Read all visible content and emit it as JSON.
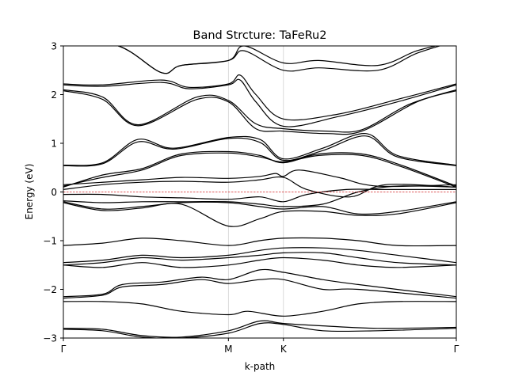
{
  "chart_data": {
    "type": "line",
    "title": "Band Strcture: TaFeRu2",
    "xlabel": "k-path",
    "ylabel": "Energy (eV)",
    "ylim": [
      -3,
      3
    ],
    "xlim": [
      0,
      1
    ],
    "yticks": [
      {
        "value": -3,
        "label": "−3"
      },
      {
        "value": -2,
        "label": "−2"
      },
      {
        "value": -1,
        "label": "−1"
      },
      {
        "value": 0,
        "label": "0"
      },
      {
        "value": 1,
        "label": "1"
      },
      {
        "value": 2,
        "label": "2"
      },
      {
        "value": 3,
        "label": "3"
      }
    ],
    "kpoints": [
      {
        "label": "Γ",
        "x": 0.0
      },
      {
        "label": "M",
        "x": 0.42
      },
      {
        "label": "K",
        "x": 0.56
      },
      {
        "label": "Γ",
        "x": 1.0
      }
    ],
    "fermi_level": 0,
    "grid": "vertical lines at high-symmetry points",
    "line_color": "#000000",
    "fermi_color": "#d62728",
    "series": [
      {
        "values": [
          [
            0.0,
            3.1
          ],
          [
            0.14,
            3.0
          ],
          [
            0.25,
            2.45
          ],
          [
            0.3,
            2.6
          ],
          [
            0.42,
            2.7
          ],
          [
            0.46,
            3.0
          ],
          [
            0.56,
            2.65
          ],
          [
            0.65,
            2.7
          ],
          [
            0.8,
            2.6
          ],
          [
            0.9,
            2.9
          ],
          [
            1.0,
            3.1
          ]
        ]
      },
      {
        "values": [
          [
            0.0,
            3.1
          ],
          [
            0.14,
            3.0
          ],
          [
            0.25,
            2.45
          ],
          [
            0.3,
            2.6
          ],
          [
            0.42,
            2.7
          ],
          [
            0.46,
            2.9
          ],
          [
            0.56,
            2.5
          ],
          [
            0.65,
            2.55
          ],
          [
            0.8,
            2.5
          ],
          [
            0.9,
            2.85
          ],
          [
            1.0,
            3.1
          ]
        ]
      },
      {
        "values": [
          [
            0.0,
            2.22
          ],
          [
            0.1,
            2.2
          ],
          [
            0.25,
            2.3
          ],
          [
            0.32,
            2.15
          ],
          [
            0.42,
            2.22
          ],
          [
            0.45,
            2.4
          ],
          [
            0.49,
            2.0
          ],
          [
            0.56,
            1.5
          ],
          [
            0.7,
            1.6
          ],
          [
            0.85,
            1.9
          ],
          [
            1.0,
            2.22
          ]
        ]
      },
      {
        "values": [
          [
            0.0,
            2.2
          ],
          [
            0.1,
            2.17
          ],
          [
            0.25,
            2.25
          ],
          [
            0.32,
            2.12
          ],
          [
            0.42,
            2.2
          ],
          [
            0.45,
            2.3
          ],
          [
            0.49,
            1.85
          ],
          [
            0.56,
            1.35
          ],
          [
            0.7,
            1.55
          ],
          [
            0.85,
            1.85
          ],
          [
            1.0,
            2.2
          ]
        ]
      },
      {
        "values": [
          [
            0.0,
            2.1
          ],
          [
            0.1,
            1.95
          ],
          [
            0.19,
            1.38
          ],
          [
            0.34,
            1.95
          ],
          [
            0.42,
            1.88
          ],
          [
            0.49,
            1.4
          ],
          [
            0.56,
            1.3
          ],
          [
            0.67,
            1.25
          ],
          [
            0.76,
            1.28
          ],
          [
            0.88,
            1.8
          ],
          [
            1.0,
            2.1
          ]
        ]
      },
      {
        "values": [
          [
            0.0,
            2.08
          ],
          [
            0.1,
            1.9
          ],
          [
            0.19,
            1.36
          ],
          [
            0.34,
            1.9
          ],
          [
            0.42,
            1.85
          ],
          [
            0.49,
            1.3
          ],
          [
            0.56,
            1.25
          ],
          [
            0.67,
            1.2
          ],
          [
            0.76,
            1.25
          ],
          [
            0.9,
            1.85
          ],
          [
            1.0,
            2.08
          ]
        ]
      },
      {
        "values": [
          [
            0.0,
            0.55
          ],
          [
            0.1,
            0.6
          ],
          [
            0.19,
            1.08
          ],
          [
            0.28,
            0.9
          ],
          [
            0.42,
            1.12
          ],
          [
            0.5,
            1.08
          ],
          [
            0.56,
            0.68
          ],
          [
            0.66,
            0.9
          ],
          [
            0.77,
            1.2
          ],
          [
            0.85,
            0.75
          ],
          [
            1.0,
            0.55
          ]
        ]
      },
      {
        "values": [
          [
            0.0,
            0.54
          ],
          [
            0.1,
            0.58
          ],
          [
            0.19,
            1.03
          ],
          [
            0.28,
            0.88
          ],
          [
            0.42,
            1.1
          ],
          [
            0.5,
            1.02
          ],
          [
            0.56,
            0.65
          ],
          [
            0.66,
            0.85
          ],
          [
            0.77,
            1.15
          ],
          [
            0.85,
            0.72
          ],
          [
            1.0,
            0.54
          ]
        ]
      },
      {
        "values": [
          [
            0.0,
            0.1
          ],
          [
            0.1,
            0.35
          ],
          [
            0.2,
            0.48
          ],
          [
            0.3,
            0.78
          ],
          [
            0.42,
            0.83
          ],
          [
            0.5,
            0.75
          ],
          [
            0.56,
            0.6
          ],
          [
            0.65,
            0.78
          ],
          [
            0.76,
            0.78
          ],
          [
            0.86,
            0.55
          ],
          [
            1.0,
            0.12
          ]
        ]
      },
      {
        "values": [
          [
            0.0,
            0.12
          ],
          [
            0.1,
            0.3
          ],
          [
            0.2,
            0.45
          ],
          [
            0.3,
            0.75
          ],
          [
            0.42,
            0.8
          ],
          [
            0.5,
            0.72
          ],
          [
            0.56,
            0.62
          ],
          [
            0.65,
            0.75
          ],
          [
            0.76,
            0.75
          ],
          [
            0.86,
            0.52
          ],
          [
            1.0,
            0.1
          ]
        ]
      },
      {
        "values": [
          [
            0.0,
            0.15
          ],
          [
            0.2,
            0.25
          ],
          [
            0.3,
            0.3
          ],
          [
            0.42,
            0.28
          ],
          [
            0.5,
            0.32
          ],
          [
            0.54,
            0.38
          ],
          [
            0.56,
            0.32
          ],
          [
            0.6,
            0.45
          ],
          [
            0.7,
            0.3
          ],
          [
            0.8,
            0.12
          ],
          [
            1.0,
            0.15
          ]
        ]
      },
      {
        "values": [
          [
            0.0,
            0.05
          ],
          [
            0.1,
            0.15
          ],
          [
            0.2,
            0.2
          ],
          [
            0.3,
            0.22
          ],
          [
            0.42,
            0.2
          ],
          [
            0.5,
            0.25
          ],
          [
            0.56,
            0.3
          ],
          [
            0.62,
            0.05
          ],
          [
            0.73,
            -0.1
          ],
          [
            0.82,
            0.15
          ],
          [
            1.0,
            0.1
          ]
        ]
      },
      {
        "values": [
          [
            0.0,
            -0.05
          ],
          [
            0.1,
            -0.05
          ],
          [
            0.2,
            -0.1
          ],
          [
            0.3,
            -0.12
          ],
          [
            0.42,
            -0.15
          ],
          [
            0.5,
            -0.1
          ],
          [
            0.56,
            -0.2
          ],
          [
            0.62,
            -0.05
          ],
          [
            0.72,
            0.05
          ],
          [
            0.82,
            0.05
          ],
          [
            1.0,
            0.05
          ]
        ]
      },
      {
        "values": [
          [
            0.0,
            -0.18
          ],
          [
            0.1,
            -0.22
          ],
          [
            0.2,
            -0.2
          ],
          [
            0.3,
            -0.2
          ],
          [
            0.42,
            -0.2
          ],
          [
            0.5,
            -0.25
          ],
          [
            0.56,
            -0.3
          ],
          [
            0.66,
            -0.25
          ],
          [
            0.75,
            0.0
          ],
          [
            0.85,
            0.12
          ],
          [
            1.0,
            0.1
          ]
        ]
      },
      {
        "values": [
          [
            0.0,
            -0.2
          ],
          [
            0.1,
            -0.35
          ],
          [
            0.2,
            -0.3
          ],
          [
            0.3,
            -0.22
          ],
          [
            0.42,
            -0.22
          ],
          [
            0.5,
            -0.3
          ],
          [
            0.56,
            -0.35
          ],
          [
            0.66,
            -0.3
          ],
          [
            0.75,
            -0.45
          ],
          [
            0.85,
            -0.4
          ],
          [
            1.0,
            -0.2
          ]
        ]
      },
      {
        "values": [
          [
            0.0,
            -0.22
          ],
          [
            0.1,
            -0.38
          ],
          [
            0.2,
            -0.33
          ],
          [
            0.3,
            -0.25
          ],
          [
            0.42,
            -0.7
          ],
          [
            0.5,
            -0.55
          ],
          [
            0.56,
            -0.4
          ],
          [
            0.66,
            -0.4
          ],
          [
            0.75,
            -0.48
          ],
          [
            0.85,
            -0.45
          ],
          [
            1.0,
            -0.22
          ]
        ]
      },
      {
        "values": [
          [
            0.0,
            -1.1
          ],
          [
            0.1,
            -1.05
          ],
          [
            0.2,
            -0.95
          ],
          [
            0.3,
            -1.0
          ],
          [
            0.42,
            -1.1
          ],
          [
            0.5,
            -1.0
          ],
          [
            0.56,
            -0.95
          ],
          [
            0.66,
            -0.95
          ],
          [
            0.75,
            -1.0
          ],
          [
            0.85,
            -1.1
          ],
          [
            1.0,
            -1.1
          ]
        ]
      },
      {
        "values": [
          [
            0.0,
            -1.45
          ],
          [
            0.1,
            -1.4
          ],
          [
            0.2,
            -1.3
          ],
          [
            0.3,
            -1.35
          ],
          [
            0.42,
            -1.3
          ],
          [
            0.5,
            -1.2
          ],
          [
            0.56,
            -1.15
          ],
          [
            0.66,
            -1.15
          ],
          [
            0.75,
            -1.2
          ],
          [
            0.85,
            -1.3
          ],
          [
            1.0,
            -1.45
          ]
        ]
      },
      {
        "values": [
          [
            0.0,
            -1.5
          ],
          [
            0.1,
            -1.45
          ],
          [
            0.2,
            -1.35
          ],
          [
            0.3,
            -1.4
          ],
          [
            0.42,
            -1.35
          ],
          [
            0.5,
            -1.3
          ],
          [
            0.56,
            -1.25
          ],
          [
            0.66,
            -1.25
          ],
          [
            0.75,
            -1.35
          ],
          [
            0.85,
            -1.45
          ],
          [
            1.0,
            -1.5
          ]
        ]
      },
      {
        "values": [
          [
            0.0,
            -1.5
          ],
          [
            0.1,
            -1.55
          ],
          [
            0.2,
            -1.45
          ],
          [
            0.3,
            -1.55
          ],
          [
            0.42,
            -1.5
          ],
          [
            0.5,
            -1.4
          ],
          [
            0.56,
            -1.35
          ],
          [
            0.66,
            -1.4
          ],
          [
            0.75,
            -1.5
          ],
          [
            0.85,
            -1.55
          ],
          [
            1.0,
            -1.5
          ]
        ]
      },
      {
        "values": [
          [
            0.0,
            -2.15
          ],
          [
            0.1,
            -2.1
          ],
          [
            0.15,
            -1.9
          ],
          [
            0.25,
            -1.85
          ],
          [
            0.35,
            -1.75
          ],
          [
            0.42,
            -1.8
          ],
          [
            0.5,
            -1.6
          ],
          [
            0.56,
            -1.65
          ],
          [
            0.66,
            -1.8
          ],
          [
            0.75,
            -1.9
          ],
          [
            1.0,
            -2.15
          ]
        ]
      },
      {
        "values": [
          [
            0.0,
            -2.18
          ],
          [
            0.1,
            -2.12
          ],
          [
            0.15,
            -1.95
          ],
          [
            0.25,
            -1.9
          ],
          [
            0.35,
            -1.8
          ],
          [
            0.42,
            -1.88
          ],
          [
            0.5,
            -1.8
          ],
          [
            0.56,
            -1.8
          ],
          [
            0.66,
            -2.0
          ],
          [
            0.75,
            -2.0
          ],
          [
            1.0,
            -2.18
          ]
        ]
      },
      {
        "values": [
          [
            0.0,
            -2.25
          ],
          [
            0.1,
            -2.25
          ],
          [
            0.2,
            -2.3
          ],
          [
            0.3,
            -2.45
          ],
          [
            0.42,
            -2.52
          ],
          [
            0.47,
            -2.45
          ],
          [
            0.56,
            -2.55
          ],
          [
            0.66,
            -2.45
          ],
          [
            0.75,
            -2.3
          ],
          [
            0.85,
            -2.25
          ],
          [
            1.0,
            -2.25
          ]
        ]
      },
      {
        "values": [
          [
            0.0,
            -2.8
          ],
          [
            0.1,
            -2.82
          ],
          [
            0.2,
            -2.95
          ],
          [
            0.3,
            -2.98
          ],
          [
            0.42,
            -2.85
          ],
          [
            0.5,
            -2.65
          ],
          [
            0.56,
            -2.7
          ],
          [
            0.66,
            -2.75
          ],
          [
            0.8,
            -2.8
          ],
          [
            1.0,
            -2.78
          ]
        ]
      },
      {
        "values": [
          [
            0.0,
            -2.82
          ],
          [
            0.1,
            -2.85
          ],
          [
            0.2,
            -2.98
          ],
          [
            0.3,
            -3.0
          ],
          [
            0.42,
            -2.9
          ],
          [
            0.5,
            -2.7
          ],
          [
            0.56,
            -2.72
          ],
          [
            0.66,
            -2.85
          ],
          [
            0.8,
            -2.85
          ],
          [
            1.0,
            -2.8
          ]
        ]
      }
    ]
  }
}
